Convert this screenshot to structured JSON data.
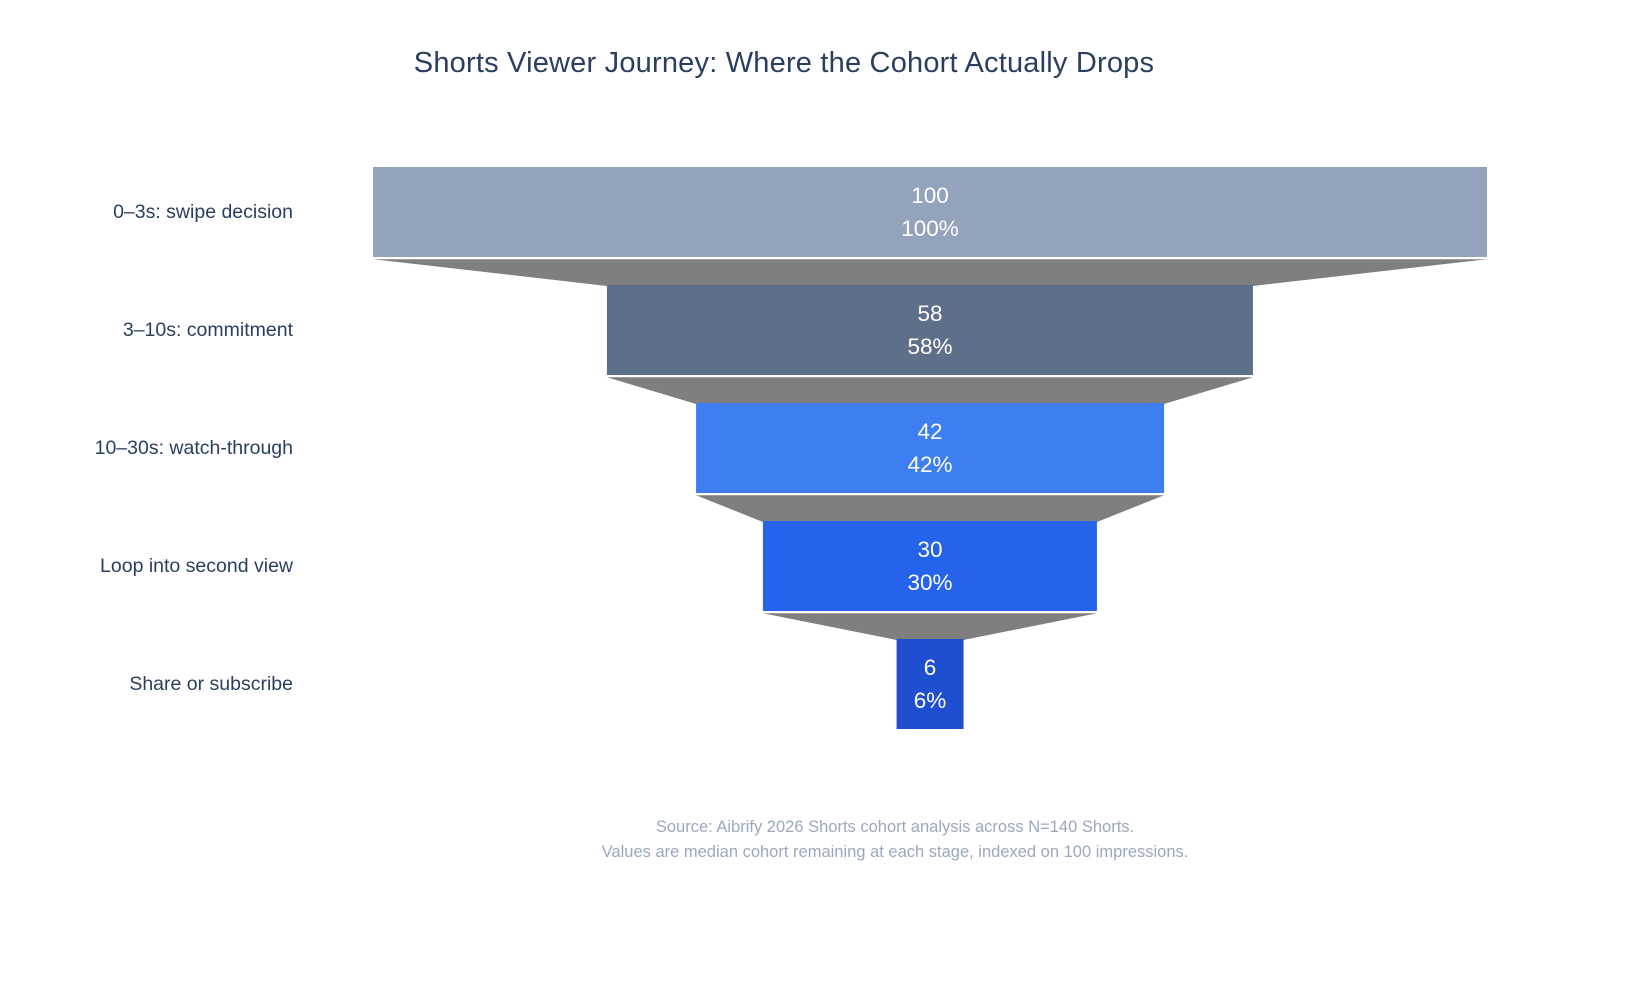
{
  "title": "Shorts Viewer Journey: Where the Cohort Actually Drops",
  "chart_data": {
    "type": "funnel",
    "stages": [
      "0–3s: swipe decision",
      "3–10s: commitment",
      "10–30s: watch-through",
      "Loop into second view",
      "Share or subscribe"
    ],
    "values": [
      100,
      58,
      42,
      30,
      6
    ],
    "percent_initial": [
      "100%",
      "58%",
      "42%",
      "30%",
      "6%"
    ],
    "value_axis_max": 100,
    "bar_colors": [
      "#93a3bc",
      "#5e7089",
      "#3d7ef2",
      "#2563eb",
      "#1f4ed0"
    ],
    "connector_color": "#7f7f7f",
    "inside_text_color": "#ffffff",
    "label_color": "#2a3f5f",
    "legend": "none",
    "grid": "off"
  },
  "source": {
    "line1": "Source: Aibrify 2026 Shorts cohort analysis across N=140 Shorts.",
    "line2": "Values are median cohort remaining at each stage, indexed on 100 impressions."
  }
}
